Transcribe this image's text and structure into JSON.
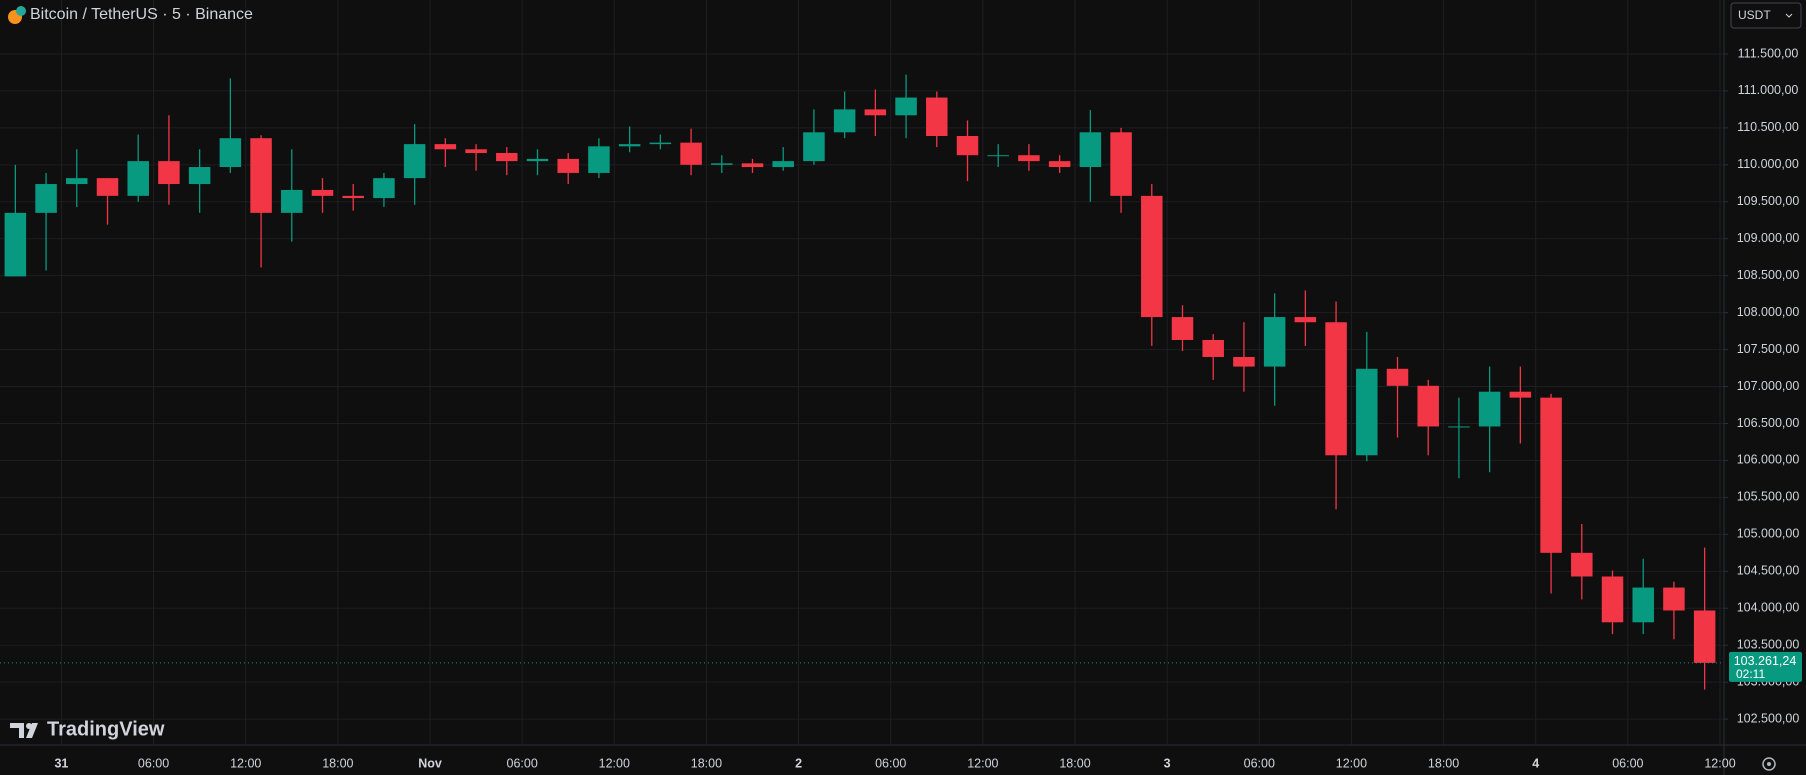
{
  "chart_data": {
    "type": "candlestick",
    "title": "Bitcoin / TetherUS · 5 · Binance",
    "currency": "USDT",
    "watermark": "TradingView",
    "up_color": "#089981",
    "down_color": "#f23645",
    "grid": true,
    "x_tick_labels": [
      "31",
      "06:00",
      "12:00",
      "18:00",
      "Nov",
      "06:00",
      "12:00",
      "18:00",
      "2",
      "06:00",
      "12:00",
      "18:00",
      "3",
      "06:00",
      "12:00",
      "18:00",
      "4",
      "06:00",
      "12:00"
    ],
    "open": [
      108490,
      109350,
      109740,
      109820,
      109580,
      110050,
      109740,
      109970,
      110360,
      109350,
      109660,
      109580,
      109550,
      109820,
      110280,
      110210,
      110160,
      110050,
      110080,
      109890,
      110250,
      110280,
      110300,
      110000,
      110020,
      109970,
      110050,
      110440,
      110750,
      110670,
      110910,
      110390,
      110130,
      110130,
      110050,
      109970,
      110440,
      109580,
      107940,
      107630,
      107400,
      107270,
      107940,
      107870,
      106070,
      107240,
      107010,
      106460,
      106460,
      106930,
      106850,
      104750,
      104430,
      103810,
      104280,
      103970
    ],
    "high": [
      110000,
      109890,
      110210,
      109820,
      110410,
      110670,
      110210,
      111170,
      110400,
      110210,
      109820,
      109740,
      109890,
      110550,
      110360,
      110280,
      110240,
      110210,
      110160,
      110360,
      110520,
      110410,
      110490,
      110130,
      110080,
      110240,
      110750,
      110990,
      111020,
      111220,
      110990,
      110600,
      110280,
      110280,
      110130,
      110740,
      110500,
      109740,
      108100,
      107710,
      107870,
      108260,
      108300,
      108150,
      107740,
      107400,
      107090,
      106850,
      107270,
      107270,
      106900,
      105140,
      104510,
      104670,
      104360,
      104820
    ],
    "low": [
      108490,
      108570,
      109430,
      109190,
      109500,
      109460,
      109350,
      109890,
      108610,
      108960,
      109350,
      109380,
      109430,
      109460,
      109970,
      109920,
      109860,
      109860,
      109740,
      109820,
      110170,
      110210,
      109860,
      109890,
      109890,
      109920,
      110000,
      110360,
      110390,
      110360,
      110240,
      109780,
      109970,
      109920,
      109890,
      109500,
      109350,
      107550,
      107480,
      107090,
      106930,
      106740,
      107550,
      105340,
      105990,
      106310,
      106070,
      105760,
      105840,
      106230,
      104200,
      104120,
      103650,
      103650,
      103580,
      102900
    ],
    "close": [
      109350,
      109740,
      109820,
      109580,
      110050,
      109740,
      109970,
      110360,
      109350,
      109660,
      109580,
      109550,
      109820,
      110280,
      110210,
      110160,
      110050,
      110080,
      109890,
      110250,
      110280,
      110300,
      110000,
      110020,
      109970,
      110050,
      110440,
      110750,
      110670,
      110910,
      110390,
      110130,
      110130,
      110050,
      109970,
      110440,
      109580,
      107940,
      107630,
      107400,
      107270,
      107940,
      107870,
      106070,
      107240,
      107010,
      106460,
      106460,
      106930,
      106850,
      104750,
      104430,
      103810,
      104280,
      103970,
      103261.24
    ],
    "last_price": {
      "value": 103261.24,
      "label": "103.261,24"
    },
    "countdown": "02:11",
    "ylim": [
      102150,
      112230
    ],
    "yticks": [
      {
        "value": 102500,
        "label": "102.500,00"
      },
      {
        "value": 103000,
        "label": "103.000,00"
      },
      {
        "value": 103500,
        "label": "103.500,00"
      },
      {
        "value": 104000,
        "label": "104.000,00"
      },
      {
        "value": 104500,
        "label": "104.500,00"
      },
      {
        "value": 105000,
        "label": "105.000,00"
      },
      {
        "value": 105500,
        "label": "105.500,00"
      },
      {
        "value": 106000,
        "label": "106.000,00"
      },
      {
        "value": 106500,
        "label": "106.500,00"
      },
      {
        "value": 107000,
        "label": "107.000,00"
      },
      {
        "value": 107500,
        "label": "107.500,00"
      },
      {
        "value": 108000,
        "label": "108.000,00"
      },
      {
        "value": 108500,
        "label": "108.500,00"
      },
      {
        "value": 109000,
        "label": "109.000,00"
      },
      {
        "value": 109500,
        "label": "109.500,00"
      },
      {
        "value": 110000,
        "label": "110.000,00"
      },
      {
        "value": 110500,
        "label": "110.500,00"
      },
      {
        "value": 111000,
        "label": "111.000,00"
      },
      {
        "value": 111500,
        "label": "111.500,00"
      }
    ]
  }
}
